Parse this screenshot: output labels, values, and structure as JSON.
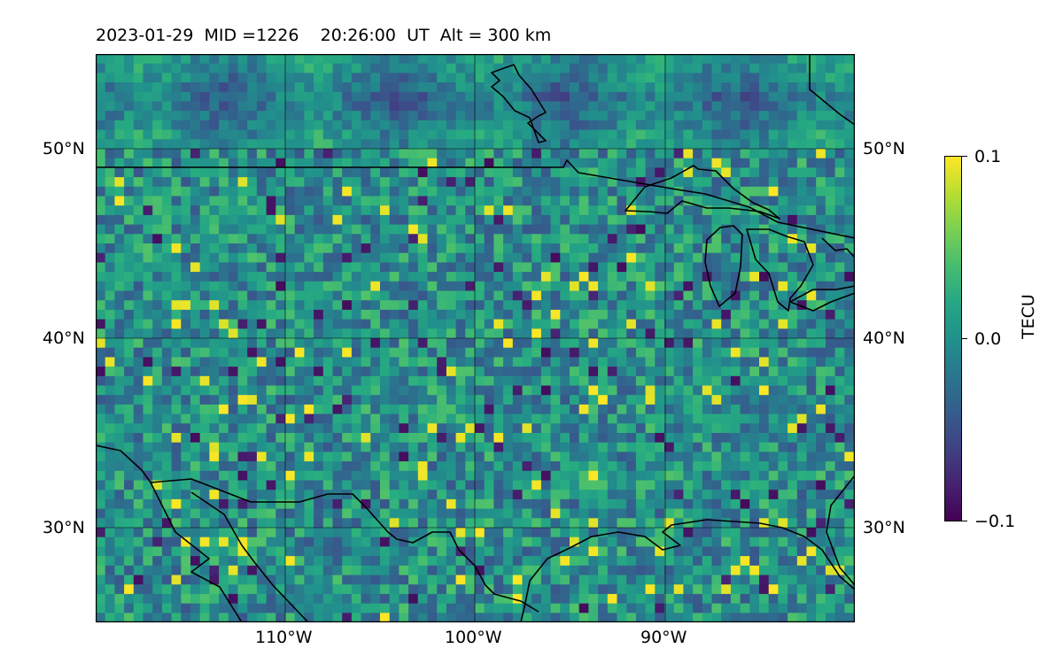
{
  "title": {
    "date": "2023-01-29",
    "mid": "MID =1226",
    "time": "20:26:00",
    "time_zone": "UT",
    "altitude": "Alt = 300 km"
  },
  "map": {
    "projection": "plate carree",
    "lon_range": [
      -120,
      -80
    ],
    "lat_range": [
      25,
      55
    ],
    "latitude_labels": [
      {
        "lat": 50,
        "text": "50°N"
      },
      {
        "lat": 40,
        "text": "40°N"
      },
      {
        "lat": 30,
        "text": "30°N"
      }
    ],
    "longitude_labels": [
      {
        "lon": -110,
        "text": "110°W"
      },
      {
        "lon": -100,
        "text": "100°W"
      },
      {
        "lon": -90,
        "text": "90°W"
      }
    ],
    "gridlines": true,
    "coastlines_and_borders": true,
    "field": "TEC perturbation (TECU), mottled noise pattern, mostly near 0"
  },
  "colorbar": {
    "label": "TECU",
    "colormap": "viridis",
    "range": [
      -0.1,
      0.1
    ],
    "ticks": [
      {
        "value": 0.1,
        "text": "0.1"
      },
      {
        "value": 0.0,
        "text": "0.0"
      },
      {
        "value": -0.1,
        "text": "−0.1"
      }
    ],
    "placement": "right"
  },
  "colors": {
    "low": "#440154",
    "mid": "#21918c",
    "high": "#fde725",
    "outline": "#000000"
  }
}
